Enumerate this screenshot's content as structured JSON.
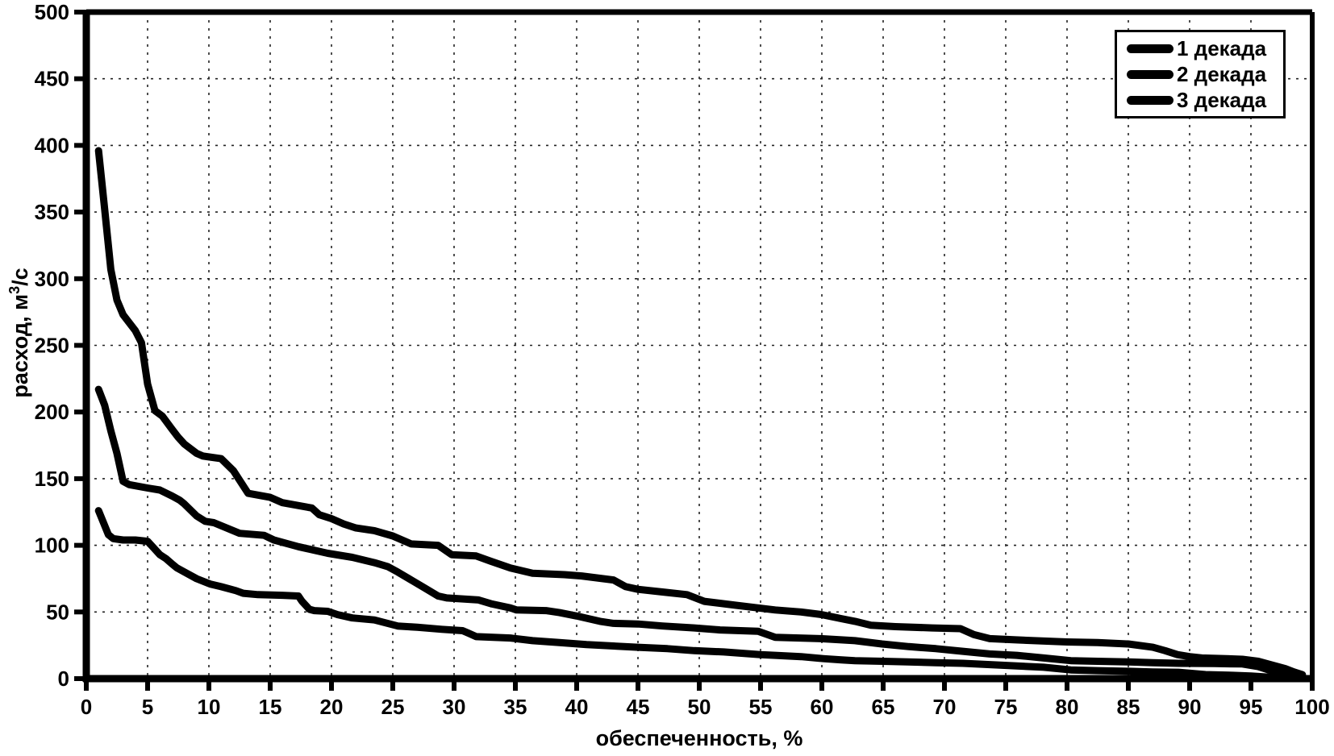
{
  "figure": {
    "background": "#ffffff",
    "ink": "#000000",
    "grid_color": "#222222"
  },
  "chart_data": {
    "type": "line",
    "title": "",
    "xlabel": "обеспеченность, %",
    "ylabel": "расход, м³/с",
    "ylabel_parts": {
      "base": "расход, м",
      "sup": "3",
      "unit": "/с"
    },
    "xlim": [
      0,
      100
    ],
    "ylim": [
      0,
      500
    ],
    "xticks": [
      0,
      5,
      10,
      15,
      20,
      25,
      30,
      35,
      40,
      45,
      50,
      55,
      60,
      65,
      70,
      75,
      80,
      85,
      90,
      95,
      100
    ],
    "yticks": [
      0,
      50,
      100,
      150,
      200,
      250,
      300,
      350,
      400,
      450,
      500
    ],
    "grid": "dashed",
    "legend_position": "top-right",
    "line_color": "#000000",
    "line_width": 9,
    "series": [
      {
        "name": "1 декада",
        "points": [
          [
            1,
            396
          ],
          [
            1.5,
            352
          ],
          [
            2,
            307
          ],
          [
            2.5,
            284
          ],
          [
            3,
            273
          ],
          [
            4,
            261
          ],
          [
            4.5,
            252
          ],
          [
            5,
            221
          ],
          [
            5.6,
            201
          ],
          [
            6.2,
            197
          ],
          [
            7,
            187
          ],
          [
            7.5,
            181
          ],
          [
            8,
            176
          ],
          [
            9,
            169
          ],
          [
            9.5,
            167
          ],
          [
            11,
            165
          ],
          [
            12,
            156
          ],
          [
            13.2,
            139
          ],
          [
            15,
            136
          ],
          [
            16,
            132
          ],
          [
            18.4,
            128
          ],
          [
            19,
            123
          ],
          [
            20,
            120
          ],
          [
            21,
            116
          ],
          [
            22,
            113
          ],
          [
            23.5,
            111
          ],
          [
            25,
            107
          ],
          [
            26.5,
            101
          ],
          [
            28.7,
            100
          ],
          [
            29.8,
            93
          ],
          [
            31.8,
            92
          ],
          [
            33,
            88
          ],
          [
            34.6,
            83
          ],
          [
            36.4,
            79
          ],
          [
            39,
            78
          ],
          [
            40.4,
            77
          ],
          [
            43,
            74
          ],
          [
            44,
            69
          ],
          [
            45,
            67
          ],
          [
            47,
            65
          ],
          [
            49,
            63
          ],
          [
            50.4,
            58
          ],
          [
            53,
            55
          ],
          [
            55.3,
            52.5
          ],
          [
            56.2,
            51.5
          ],
          [
            58.3,
            50
          ],
          [
            60,
            48
          ],
          [
            61.6,
            45
          ],
          [
            62.7,
            43
          ],
          [
            64,
            40
          ],
          [
            66,
            39
          ],
          [
            69,
            38
          ],
          [
            71.3,
            37.5
          ],
          [
            72.4,
            33
          ],
          [
            73.7,
            30
          ],
          [
            76,
            29
          ],
          [
            80,
            27.5
          ],
          [
            82.5,
            27
          ],
          [
            85,
            26
          ],
          [
            87,
            23.5
          ],
          [
            88,
            21
          ],
          [
            89,
            18
          ],
          [
            90,
            16.5
          ],
          [
            91,
            15.5
          ],
          [
            93,
            15
          ],
          [
            94.3,
            14.5
          ],
          [
            95.6,
            13
          ],
          [
            96.8,
            10
          ],
          [
            97.8,
            7.5
          ],
          [
            98.5,
            5
          ],
          [
            99.2,
            3
          ]
        ]
      },
      {
        "name": "2 декада",
        "points": [
          [
            1,
            217
          ],
          [
            1.5,
            205
          ],
          [
            2,
            186
          ],
          [
            2.5,
            169
          ],
          [
            3,
            148
          ],
          [
            3.5,
            145.5
          ],
          [
            5,
            143
          ],
          [
            6,
            141.5
          ],
          [
            7,
            137
          ],
          [
            7.6,
            134
          ],
          [
            8,
            131
          ],
          [
            9,
            122
          ],
          [
            9.7,
            118
          ],
          [
            10.4,
            117
          ],
          [
            12.5,
            109
          ],
          [
            14.5,
            107.5
          ],
          [
            15.3,
            104
          ],
          [
            17.3,
            99
          ],
          [
            19.7,
            94
          ],
          [
            21.7,
            91
          ],
          [
            23.5,
            87
          ],
          [
            24.6,
            84
          ],
          [
            25.4,
            80
          ],
          [
            26.5,
            74
          ],
          [
            27.6,
            68
          ],
          [
            28.7,
            62
          ],
          [
            29.4,
            60.5
          ],
          [
            32,
            59
          ],
          [
            33.1,
            56
          ],
          [
            34.6,
            53
          ],
          [
            35.1,
            51.5
          ],
          [
            37.5,
            51
          ],
          [
            38.6,
            49.5
          ],
          [
            40,
            47
          ],
          [
            41.9,
            43
          ],
          [
            43,
            41.5
          ],
          [
            45,
            41
          ],
          [
            47,
            39.5
          ],
          [
            49.6,
            38
          ],
          [
            51.7,
            36.5
          ],
          [
            54.8,
            35.5
          ],
          [
            56.2,
            31
          ],
          [
            59.9,
            30
          ],
          [
            62.7,
            28.5
          ],
          [
            64.9,
            26
          ],
          [
            67.1,
            24
          ],
          [
            69.3,
            22.5
          ],
          [
            71.5,
            20.5
          ],
          [
            73.7,
            18.5
          ],
          [
            75.9,
            17.5
          ],
          [
            78.1,
            15.5
          ],
          [
            80.3,
            13.5
          ],
          [
            82.5,
            13
          ],
          [
            85,
            12.5
          ],
          [
            87,
            12
          ],
          [
            89.1,
            11.5
          ],
          [
            92,
            11.3
          ],
          [
            94.3,
            11
          ],
          [
            95.6,
            9
          ],
          [
            96.8,
            5.5
          ],
          [
            97.8,
            4
          ],
          [
            98.6,
            2.5
          ]
        ]
      },
      {
        "name": "3 декада",
        "points": [
          [
            1,
            126
          ],
          [
            1.8,
            108
          ],
          [
            2.2,
            105
          ],
          [
            3,
            104
          ],
          [
            4,
            104
          ],
          [
            5,
            103
          ],
          [
            5.3,
            100
          ],
          [
            6,
            93
          ],
          [
            6.5,
            90
          ],
          [
            7,
            86
          ],
          [
            7.4,
            83
          ],
          [
            8,
            80
          ],
          [
            9,
            75
          ],
          [
            10.1,
            71
          ],
          [
            11,
            69
          ],
          [
            12.2,
            66
          ],
          [
            12.8,
            64
          ],
          [
            14,
            63
          ],
          [
            16,
            62.5
          ],
          [
            17.3,
            62
          ],
          [
            17.6,
            58
          ],
          [
            18.2,
            52
          ],
          [
            18.6,
            51
          ],
          [
            19.7,
            50.5
          ],
          [
            20.5,
            48
          ],
          [
            21.7,
            45.5
          ],
          [
            23.5,
            44
          ],
          [
            25.4,
            39.5
          ],
          [
            27,
            38.5
          ],
          [
            29,
            37
          ],
          [
            30.7,
            36
          ],
          [
            31.2,
            34
          ],
          [
            31.8,
            31.5
          ],
          [
            34.6,
            30.5
          ],
          [
            36.4,
            28.5
          ],
          [
            38.6,
            27
          ],
          [
            40.8,
            25.5
          ],
          [
            43,
            24.5
          ],
          [
            45,
            23.5
          ],
          [
            47.4,
            22.5
          ],
          [
            49.6,
            21
          ],
          [
            52,
            20
          ],
          [
            55,
            18
          ],
          [
            56.2,
            17.5
          ],
          [
            58.3,
            16.5
          ],
          [
            60.1,
            15
          ],
          [
            61.6,
            14
          ],
          [
            62.7,
            13.5
          ],
          [
            65,
            13
          ],
          [
            67,
            12.5
          ],
          [
            69.3,
            12
          ],
          [
            71.5,
            11.5
          ],
          [
            73.7,
            10.5
          ],
          [
            75.9,
            9.5
          ],
          [
            78.1,
            8.5
          ],
          [
            80.3,
            6.5
          ],
          [
            82.5,
            6
          ],
          [
            85,
            5.5
          ],
          [
            87,
            5
          ],
          [
            89.1,
            4.8
          ],
          [
            91.3,
            3
          ],
          [
            93.5,
            2.5
          ],
          [
            95,
            2
          ],
          [
            96.5,
            1
          ],
          [
            97.5,
            0.5
          ]
        ]
      }
    ]
  }
}
